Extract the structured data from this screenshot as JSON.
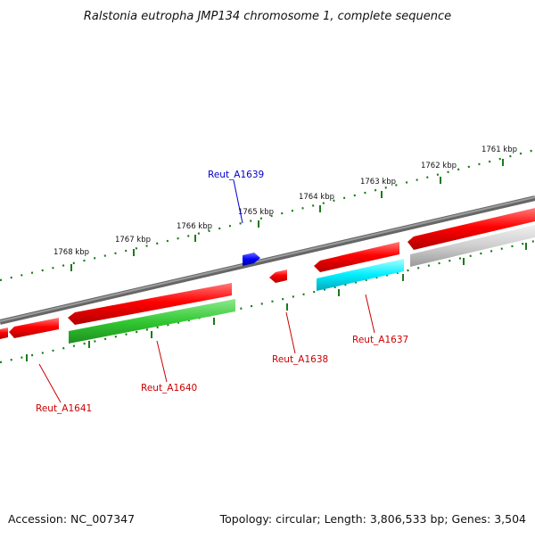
{
  "title": "Ralstonia eutropha JMP134 chromosome 1, complete sequence",
  "footer": {
    "accession": "Accession: NC_007347",
    "summary": "Topology: circular; Length: 3,806,533 bp; Genes: 3,504"
  },
  "ticks": [
    {
      "label": "1761 kbp"
    },
    {
      "label": "1762 kbp"
    },
    {
      "label": "1763 kbp"
    },
    {
      "label": "1764 kbp"
    },
    {
      "label": "1765 kbp"
    },
    {
      "label": "1766 kbp"
    },
    {
      "label": "1767 kbp"
    },
    {
      "label": "1768 kbp"
    }
  ],
  "genes": [
    {
      "id": "Reut_A1639",
      "label": "Reut_A1639",
      "color": "#0000ff"
    },
    {
      "id": "Reut_A1641",
      "label": "Reut_A1641",
      "color": "#ff0000"
    },
    {
      "id": "Reut_A1640",
      "label": "Reut_A1640",
      "color": "#ff0000"
    },
    {
      "id": "Reut_A1638",
      "label": "Reut_A1638",
      "color": "#ff0000"
    },
    {
      "id": "Reut_A1637",
      "label": "Reut_A1637",
      "color": "#ff0000"
    }
  ],
  "colors": {
    "cds": "#ff0000",
    "gene_green": "#33c933",
    "gene_cyan": "#00eeff",
    "gene_gray": "#c8c8c8",
    "backbone": "#888888",
    "tick": "#1a7a1a",
    "label_blue": "#0000cc",
    "label_red": "#cc0000"
  }
}
